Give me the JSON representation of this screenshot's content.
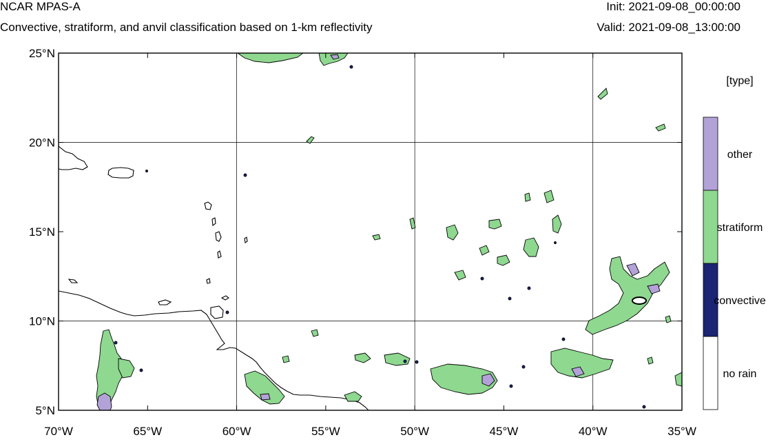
{
  "header": {
    "title": "NCAR MPAS-A",
    "subtitle": "Convective, stratiform, and anvil classification based on 1-km reflectivity",
    "init": "Init: 2021-09-08_00:00:00",
    "valid": "Valid: 2021-09-08_13:00:00"
  },
  "map": {
    "lon_range": [
      -70,
      -35
    ],
    "lat_range": [
      5,
      25
    ],
    "lon_ticks": [
      {
        "value": -70,
        "label": "70°W"
      },
      {
        "value": -65,
        "label": "65°W"
      },
      {
        "value": -60,
        "label": "60°W"
      },
      {
        "value": -55,
        "label": "55°W"
      },
      {
        "value": -50,
        "label": "50°W"
      },
      {
        "value": -45,
        "label": "45°W"
      },
      {
        "value": -40,
        "label": "40°W"
      },
      {
        "value": -35,
        "label": "35°W"
      }
    ],
    "lat_ticks": [
      {
        "value": 25,
        "label": "25°N"
      },
      {
        "value": 20,
        "label": "20°N"
      },
      {
        "value": 15,
        "label": "15°N"
      },
      {
        "value": 10,
        "label": "10°N"
      },
      {
        "value": 5,
        "label": "5°N"
      }
    ],
    "gridlines": true,
    "gridline_lons": [
      -60,
      -50,
      -40
    ],
    "gridline_lats": [
      20,
      10
    ]
  },
  "legend": {
    "title": "[type]",
    "entries": [
      {
        "label": "other",
        "color": "#b3a2d8"
      },
      {
        "label": "stratiform",
        "color": "#8ed88f"
      },
      {
        "label": "convective",
        "color": "#1b2573"
      },
      {
        "label": "no rain",
        "color": "#ffffff"
      }
    ]
  },
  "colors": {
    "stratiform": "#8ed88f",
    "other": "#b3a2d8",
    "convective": "#1b2573",
    "no_rain": "#ffffff",
    "coast": "#000000"
  }
}
